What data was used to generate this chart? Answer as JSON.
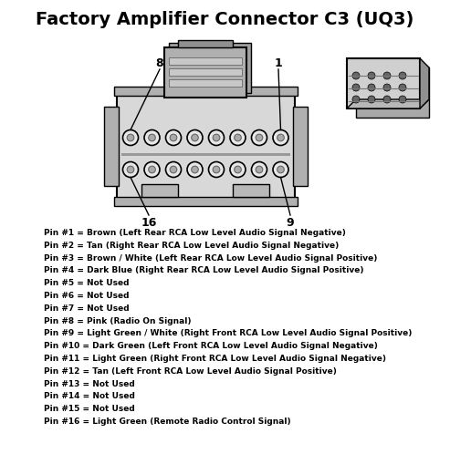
{
  "title": "Factory Amplifier Connector C3 (UQ3)",
  "title_fontsize": 14,
  "bg_color": "#ffffff",
  "text_color": "#000000",
  "pin_descriptions": [
    "Pin #1 = Brown (Left Rear RCA Low Level Audio Signal Negative)",
    "Pin #2 = Tan (Right Rear RCA Low Level Audio Signal Negative)",
    "Pin #3 = Brown / White (Left Rear RCA Low Level Audio Signal Positive)",
    "Pin #4 = Dark Blue (Right Rear RCA Low Level Audio Signal Positive)",
    "Pin #5 = Not Used",
    "Pin #6 = Not Used",
    "Pin #7 = Not Used",
    "Pin #8 = Pink (Radio On Signal)",
    "Pin #9 = Light Green / White (Right Front RCA Low Level Audio Signal Positive)",
    "Pin #10 = Dark Green (Left Front RCA Low Level Audio Signal Negative)",
    "Pin #11 = Light Green (Right Front RCA Low Level Audio Signal Negative)",
    "Pin #12 = Tan (Left Front RCA Low Level Audio Signal Positive)",
    "Pin #13 = Not Used",
    "Pin #14 = Not Used",
    "Pin #15 = Not Used",
    "Pin #16 = Light Green (Remote Radio Control Signal)"
  ],
  "pin_label_fontsize": 6.5,
  "lbl_8": "8",
  "lbl_1": "1",
  "lbl_16": "16",
  "lbl_9": "9",
  "connector_color": "#d8d8d8",
  "connector_dark": "#888888",
  "connector_mid": "#b0b0b0",
  "line_color": "#000000"
}
